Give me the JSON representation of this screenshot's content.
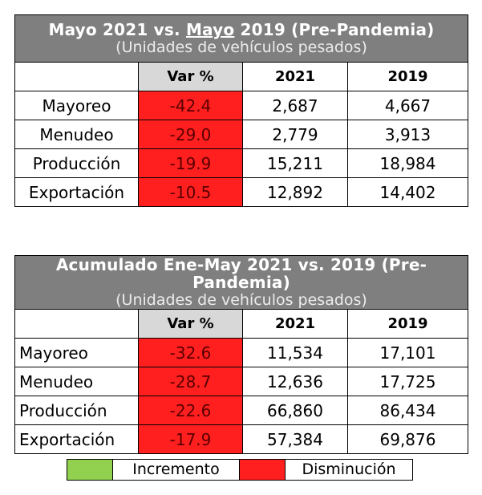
{
  "colors": {
    "header_bg": "#7f7f7f",
    "var_header_bg": "#d8d8d8",
    "decrease": "#ff1f1f",
    "increase": "#92d050"
  },
  "table1": {
    "title_part1": "Mayo 2021 vs. ",
    "title_underlined": "Mayo",
    "title_part2": " 2019 (Pre-Pandemia)",
    "subtitle": "(Unidades de vehículos pesados)",
    "columns": [
      "",
      "Var %",
      "2021",
      "2019"
    ],
    "rows": [
      {
        "label": "Mayoreo",
        "var": "-42.4",
        "y2021": "2,687",
        "y2019": "4,667"
      },
      {
        "label": "Menudeo",
        "var": "-29.0",
        "y2021": "2,779",
        "y2019": "3,913"
      },
      {
        "label": "Producción",
        "var": "-19.9",
        "y2021": "15,211",
        "y2019": "18,984"
      },
      {
        "label": "Exportación",
        "var": "-10.5",
        "y2021": "12,892",
        "y2019": "14,402"
      }
    ]
  },
  "table2": {
    "title": "Acumulado Ene-May 2021 vs. 2019 (Pre-Pandemia)",
    "subtitle": "(Unidades de vehículos pesados)",
    "columns": [
      "",
      "Var %",
      "2021",
      "2019"
    ],
    "rows": [
      {
        "label": "Mayoreo",
        "var": "-32.6",
        "y2021": "11,534",
        "y2019": "17,101"
      },
      {
        "label": "Menudeo",
        "var": "-28.7",
        "y2021": "12,636",
        "y2019": "17,725"
      },
      {
        "label": "Producción",
        "var": "-22.6",
        "y2021": "66,860",
        "y2019": "86,434"
      },
      {
        "label": "Exportación",
        "var": "-17.9",
        "y2021": "57,384",
        "y2019": "69,876"
      }
    ]
  },
  "legend": {
    "items": [
      {
        "label": "Incremento",
        "color": "#92d050"
      },
      {
        "label": "Disminución",
        "color": "#ff1f1f"
      }
    ]
  }
}
